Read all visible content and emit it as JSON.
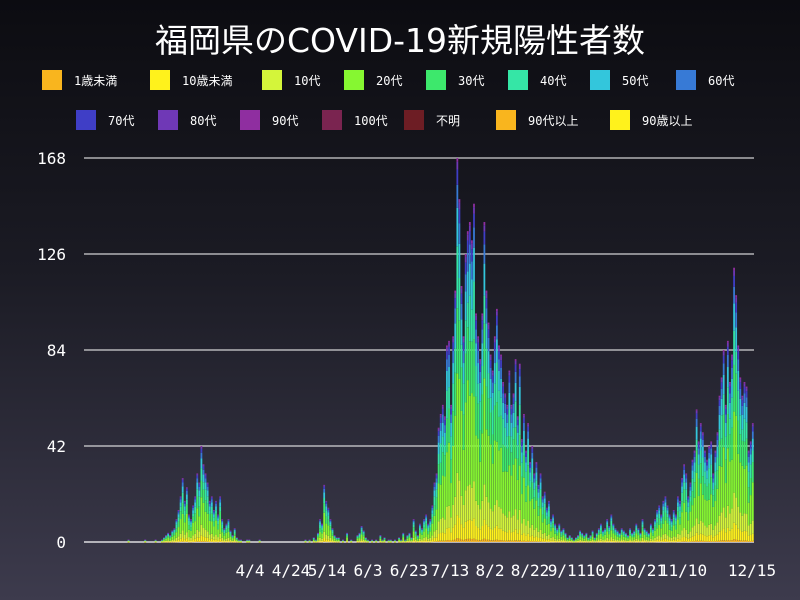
{
  "chart_data": {
    "type": "bar",
    "stacked": true,
    "title": "福岡県のCOVID-19新規陽性者数",
    "xlabel": "",
    "ylabel": "",
    "ylim": [
      0,
      168
    ],
    "yticks": [
      0,
      42,
      84,
      126,
      168
    ],
    "x_tick_labels": [
      "4/4",
      "4/24",
      "5/14",
      "6/3",
      "6/23",
      "7/13",
      "8/2",
      "8/22",
      "9/11",
      "10/1",
      "10/21",
      "11/10",
      "12/15"
    ],
    "grid": true,
    "legend_position": "top",
    "legend": [
      {
        "name": "1歳未満",
        "color": "#f9b51e"
      },
      {
        "name": "10歳未満",
        "color": "#fff21c"
      },
      {
        "name": "10代",
        "color": "#d4f53a"
      },
      {
        "name": "20代",
        "color": "#86f731"
      },
      {
        "name": "30代",
        "color": "#3de86c"
      },
      {
        "name": "40代",
        "color": "#35e6a6"
      },
      {
        "name": "50代",
        "color": "#33c6dc"
      },
      {
        "name": "60代",
        "color": "#377ad6"
      },
      {
        "name": "70代",
        "color": "#3f3ec6"
      },
      {
        "name": "80代",
        "color": "#6f38b6"
      },
      {
        "name": "90代",
        "color": "#8f2ea0"
      },
      {
        "name": "100代",
        "color": "#7a2450"
      },
      {
        "name": "不明",
        "color": "#6d1d24"
      },
      {
        "name": "90代以上",
        "color": "#f9b51e"
      },
      {
        "name": "90歳以上",
        "color": "#fff21c"
      }
    ],
    "x_start_day_label": "3/1",
    "daily_totals": [
      0,
      0,
      0,
      0,
      0,
      0,
      0,
      0,
      0,
      0,
      0,
      0,
      0,
      0,
      0,
      0,
      0,
      0,
      0,
      0,
      0,
      1,
      0,
      0,
      0,
      0,
      0,
      0,
      0,
      1,
      0,
      0,
      0,
      0,
      1,
      0,
      0,
      1,
      2,
      3,
      4,
      3,
      5,
      6,
      10,
      14,
      20,
      28,
      18,
      24,
      12,
      10,
      16,
      20,
      30,
      26,
      42,
      34,
      30,
      26,
      18,
      20,
      14,
      18,
      12,
      20,
      10,
      6,
      8,
      10,
      5,
      3,
      6,
      2,
      1,
      1,
      0,
      0,
      1,
      1,
      0,
      0,
      0,
      0,
      1,
      0,
      0,
      0,
      0,
      0,
      0,
      0,
      0,
      0,
      0,
      0,
      0,
      0,
      0,
      0,
      0,
      0,
      0,
      0,
      0,
      0,
      1,
      0,
      1,
      0,
      2,
      1,
      4,
      10,
      8,
      25,
      18,
      15,
      10,
      6,
      3,
      2,
      2,
      0,
      1,
      0,
      4,
      0,
      1,
      0,
      0,
      3,
      4,
      7,
      5,
      2,
      1,
      0,
      1,
      0,
      1,
      0,
      3,
      1,
      2,
      0,
      1,
      1,
      0,
      1,
      0,
      2,
      1,
      4,
      1,
      3,
      4,
      2,
      10,
      5,
      3,
      8,
      6,
      10,
      12,
      8,
      10,
      16,
      26,
      30,
      50,
      56,
      60,
      55,
      86,
      88,
      60,
      90,
      110,
      168,
      150,
      112,
      90,
      126,
      136,
      140,
      132,
      148,
      100,
      90,
      80,
      100,
      140,
      110,
      96,
      82,
      75,
      90,
      102,
      86,
      82,
      70,
      65,
      60,
      75,
      60,
      65,
      80,
      55,
      78,
      45,
      56,
      40,
      52,
      35,
      42,
      30,
      35,
      25,
      30,
      20,
      22,
      15,
      18,
      10,
      12,
      8,
      6,
      8,
      5,
      6,
      4,
      2,
      3,
      2,
      1,
      2,
      3,
      5,
      4,
      3,
      4,
      2,
      3,
      5,
      2,
      4,
      6,
      8,
      5,
      6,
      10,
      7,
      12,
      8,
      6,
      5,
      4,
      6,
      5,
      4,
      3,
      6,
      4,
      5,
      8,
      6,
      4,
      10,
      6,
      5,
      4,
      8,
      6,
      10,
      14,
      16,
      12,
      18,
      20,
      16,
      12,
      10,
      14,
      12,
      20,
      18,
      28,
      34,
      30,
      20,
      26,
      36,
      40,
      58,
      44,
      52,
      48,
      40,
      36,
      42,
      44,
      30,
      40,
      48,
      64,
      72,
      84,
      60,
      88,
      70,
      82,
      120,
      108,
      86,
      72,
      64,
      70,
      68,
      40,
      44,
      52
    ]
  }
}
